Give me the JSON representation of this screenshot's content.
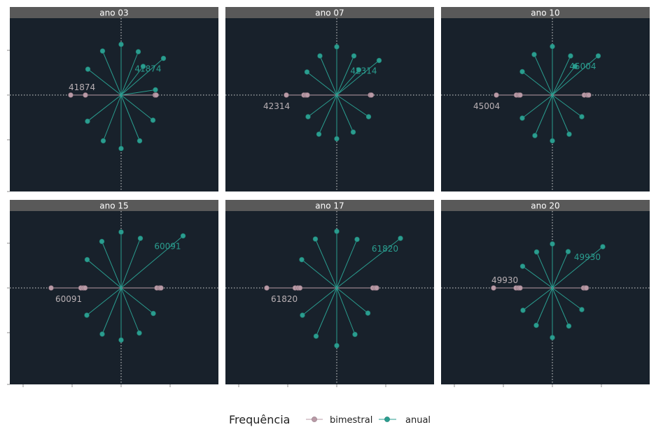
{
  "legend": {
    "title": "Frequência",
    "items": [
      {
        "label": "bimestral",
        "color": "#b99aa6"
      },
      {
        "label": "anual",
        "color": "#2a9d8f"
      }
    ]
  },
  "colors": {
    "panel_background": "#18212b",
    "strip_background": "#595959",
    "anual": "#2a9d8f",
    "bimestral": "#b99aa6"
  },
  "chart_data": {
    "type": "scatter",
    "description_of_encoding": "faceted polar-like star plots, one per year panel",
    "facets": [
      {
        "title": "ano 03",
        "anual_label": "41874",
        "bimestral_label": "41874",
        "anual_points": [
          [
            0,
            1.45
          ],
          [
            0.49,
            1.24
          ],
          [
            0.63,
            0.82
          ],
          [
            1.21,
            1.05
          ],
          [
            0.98,
            0.15
          ],
          [
            0.91,
            -0.72
          ],
          [
            0.53,
            -1.31
          ],
          [
            0,
            -1.53
          ],
          [
            -0.51,
            -1.31
          ],
          [
            -0.96,
            -0.75
          ],
          [
            -0.95,
            0.74
          ],
          [
            -0.53,
            1.26
          ]
        ],
        "bimestral_points": [
          [
            -1.44,
            0
          ],
          [
            -1.02,
            0
          ],
          [
            0.97,
            0
          ],
          [
            1.0,
            0
          ]
        ]
      },
      {
        "title": "ano 07",
        "anual_label": "42314",
        "bimestral_label": "42314",
        "anual_points": [
          [
            0,
            1.38
          ],
          [
            0.49,
            1.12
          ],
          [
            0.63,
            0.72
          ],
          [
            1.21,
            0.99
          ],
          [
            0.91,
            -0.62
          ],
          [
            0.47,
            -1.06
          ],
          [
            0,
            -1.25
          ],
          [
            -0.51,
            -1.12
          ],
          [
            -0.82,
            -0.62
          ],
          [
            -0.85,
            0.66
          ],
          [
            -0.48,
            1.12
          ]
        ],
        "bimestral_points": [
          [
            -1.44,
            0
          ],
          [
            -0.94,
            0
          ],
          [
            -0.88,
            0
          ],
          [
            -0.84,
            0
          ],
          [
            0.96,
            0
          ],
          [
            0.99,
            0
          ]
        ]
      },
      {
        "title": "ano 10",
        "anual_label": "45004",
        "bimestral_label": "45004",
        "anual_points": [
          [
            0,
            1.39
          ],
          [
            0.52,
            1.12
          ],
          [
            0.65,
            0.82
          ],
          [
            1.31,
            1.12
          ],
          [
            0.84,
            -0.62
          ],
          [
            0.48,
            -1.12
          ],
          [
            0,
            -1.31
          ],
          [
            -0.5,
            -1.16
          ],
          [
            -0.86,
            -0.66
          ],
          [
            -0.86,
            0.67
          ],
          [
            -0.52,
            1.16
          ]
        ],
        "bimestral_points": [
          [
            -1.6,
            0
          ],
          [
            -1.03,
            0
          ],
          [
            -0.96,
            0
          ],
          [
            -0.92,
            0
          ],
          [
            0.91,
            0
          ],
          [
            1.0,
            0
          ],
          [
            1.04,
            0
          ]
        ]
      },
      {
        "title": "ano 15",
        "anual_label": "60091",
        "bimestral_label": "60091",
        "anual_points": [
          [
            0,
            1.6
          ],
          [
            0.55,
            1.42
          ],
          [
            1.77,
            1.49
          ],
          [
            0.92,
            -0.73
          ],
          [
            0.52,
            -1.29
          ],
          [
            0,
            -1.49
          ],
          [
            -0.54,
            -1.32
          ],
          [
            -0.98,
            -0.78
          ],
          [
            -0.97,
            0.81
          ],
          [
            -0.55,
            1.33
          ]
        ],
        "bimestral_points": [
          [
            -2.0,
            0
          ],
          [
            -1.15,
            0
          ],
          [
            -1.08,
            0
          ],
          [
            -1.03,
            0
          ],
          [
            1.02,
            0
          ],
          [
            1.1,
            0
          ],
          [
            1.14,
            0
          ]
        ]
      },
      {
        "title": "ano 17",
        "anual_label": "61820",
        "bimestral_label": "61820",
        "anual_points": [
          [
            0,
            1.62
          ],
          [
            0.58,
            1.39
          ],
          [
            1.82,
            1.42
          ],
          [
            0.89,
            -0.72
          ],
          [
            0.52,
            -1.33
          ],
          [
            0,
            -1.65
          ],
          [
            -0.59,
            -1.38
          ],
          [
            -0.98,
            -0.78
          ],
          [
            -1.0,
            0.81
          ],
          [
            -0.61,
            1.4
          ]
        ],
        "bimestral_points": [
          [
            -2.0,
            0
          ],
          [
            -1.19,
            0
          ],
          [
            -1.11,
            0
          ],
          [
            -1.05,
            0
          ],
          [
            1.03,
            0
          ],
          [
            1.1,
            0
          ],
          [
            1.14,
            0
          ]
        ]
      },
      {
        "title": "ano 20",
        "anual_label": "49930",
        "bimestral_label": "49930",
        "anual_points": [
          [
            0,
            1.26
          ],
          [
            0.45,
            1.04
          ],
          [
            1.44,
            1.18
          ],
          [
            0.84,
            -0.62
          ],
          [
            0.47,
            -1.09
          ],
          [
            0,
            -1.42
          ],
          [
            -0.46,
            -1.07
          ],
          [
            -0.84,
            -0.64
          ],
          [
            -0.85,
            0.62
          ],
          [
            -0.45,
            1.03
          ]
        ],
        "bimestral_points": [
          [
            -1.68,
            0
          ],
          [
            -1.04,
            0
          ],
          [
            -0.97,
            0
          ],
          [
            -0.92,
            0
          ],
          [
            0.89,
            0
          ],
          [
            0.94,
            0
          ],
          [
            0.97,
            0
          ]
        ]
      }
    ]
  }
}
